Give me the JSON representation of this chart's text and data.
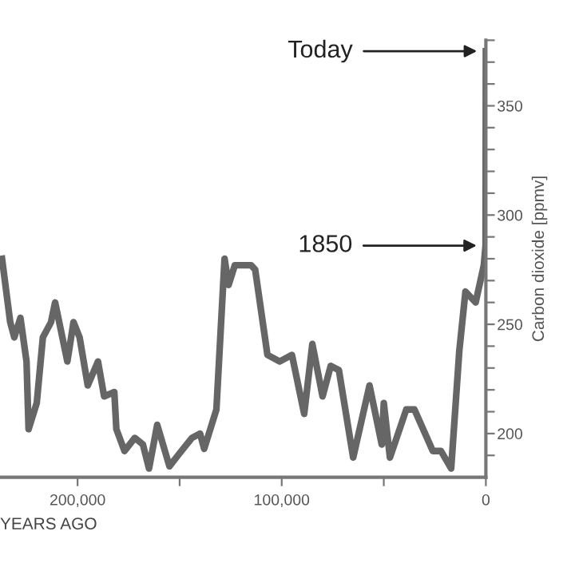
{
  "chart_data": {
    "type": "line",
    "xlabel": "YEARS AGO",
    "ylabel": "Carbon dioxide [ppmv]",
    "x": [
      237000,
      233000,
      231000,
      228000,
      225000,
      224000,
      220000,
      217000,
      213000,
      211000,
      205000,
      202000,
      199000,
      195000,
      190000,
      187000,
      182000,
      181000,
      177000,
      172000,
      168000,
      165000,
      161000,
      155000,
      150000,
      144000,
      140000,
      138000,
      135000,
      132000,
      128000,
      126000,
      123000,
      115000,
      113000,
      107000,
      101000,
      95000,
      89000,
      85000,
      80000,
      76000,
      72000,
      65000,
      57000,
      51000,
      50000,
      47000,
      39000,
      35000,
      26000,
      22000,
      17000,
      13000,
      10000,
      5000,
      1000,
      150,
      0
    ],
    "series": [
      {
        "color": "#666666",
        "values": [
          280,
          251,
          244,
          253,
          233,
          202,
          214,
          244,
          251,
          260,
          233,
          251,
          244,
          222,
          233,
          217,
          219,
          202,
          192,
          198,
          195,
          184,
          204,
          185,
          191,
          198,
          200,
          193,
          202,
          211,
          280,
          268,
          277,
          277,
          275,
          236,
          233,
          236,
          209,
          241,
          217,
          231,
          229,
          189,
          222,
          195,
          214,
          189,
          211,
          211,
          192,
          192,
          184,
          238,
          265,
          260,
          277,
          286,
          375
        ]
      }
    ],
    "xlim": [
      238000,
      0
    ],
    "xticks": [
      {
        "value": 200000,
        "label": "200,000"
      },
      {
        "value": 150000,
        "label": null
      },
      {
        "value": 100000,
        "label": "100,000"
      },
      {
        "value": 50000,
        "label": null
      },
      0
    ],
    "ylim": [
      180,
      380
    ],
    "yticks": [
      {
        "value": 190,
        "label": null
      },
      200,
      {
        "value": 210,
        "label": null
      },
      {
        "value": 220,
        "label": null
      },
      {
        "value": 230,
        "label": null
      },
      {
        "value": 240,
        "label": null
      },
      250,
      {
        "value": 260,
        "label": null
      },
      {
        "value": 270,
        "label": null
      },
      {
        "value": 280,
        "label": null
      },
      {
        "value": 290,
        "label": null
      },
      300,
      {
        "value": 310,
        "label": null
      },
      {
        "value": 320,
        "label": null
      },
      {
        "value": 330,
        "label": null
      },
      {
        "value": 340,
        "label": null
      },
      350,
      {
        "value": 360,
        "label": null
      },
      {
        "value": 370,
        "label": null
      },
      {
        "value": 380,
        "label": null
      }
    ],
    "annotations": [
      {
        "text": "Today",
        "x": 0,
        "y": 375
      },
      {
        "text": "1850",
        "x": 150,
        "y": 286
      }
    ],
    "grid": false,
    "marker": "none",
    "line_style": "solid"
  }
}
